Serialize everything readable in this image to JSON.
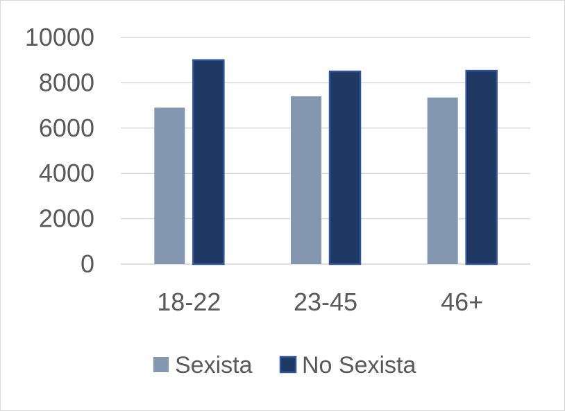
{
  "chart_data": {
    "type": "bar",
    "categories": [
      "18-22",
      "23-45",
      "46+"
    ],
    "series": [
      {
        "name": "Sexista",
        "values": [
          6900,
          7400,
          7350
        ],
        "color": "#8497b0"
      },
      {
        "name": "No Sexista",
        "values": [
          9000,
          8500,
          8530
        ],
        "color": "#203864"
      }
    ],
    "bar_border_color": "#2f5597",
    "ylim": [
      0,
      10000
    ],
    "yticks": [
      0,
      2000,
      4000,
      6000,
      8000,
      10000
    ],
    "grid": true,
    "legend_position": "bottom",
    "title": "",
    "xlabel": "",
    "ylabel": ""
  }
}
